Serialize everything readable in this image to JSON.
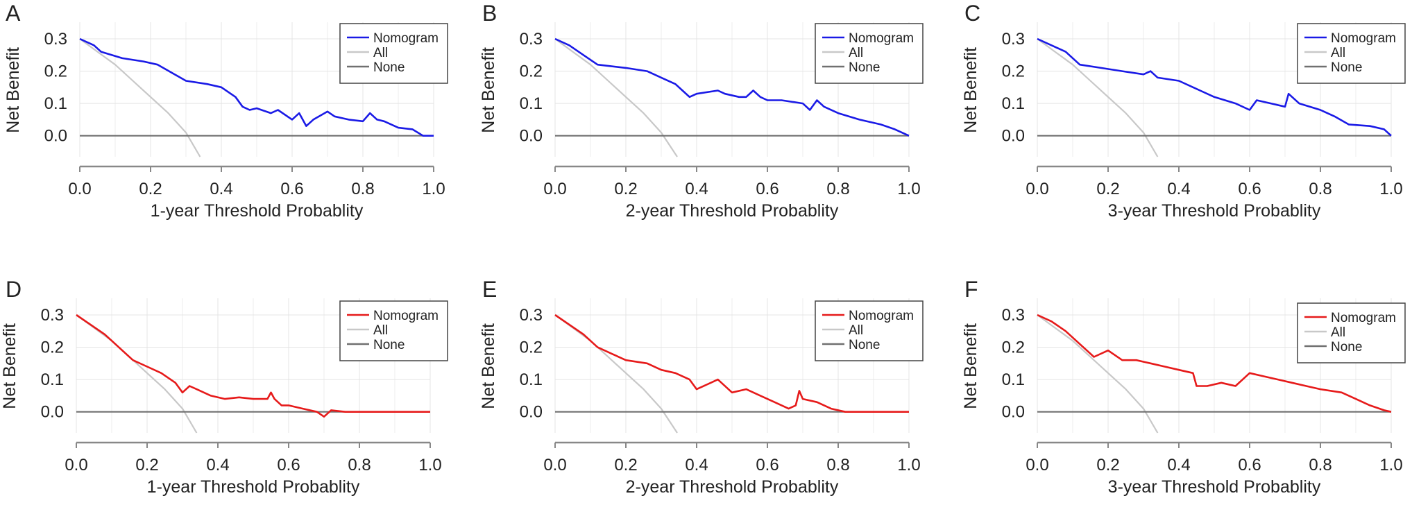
{
  "chart_data": [
    {
      "type": "line",
      "panel_label": "A",
      "xlabel": "1-year Threshold Probablity",
      "ylabel": "Net Benefit",
      "xlim": [
        0,
        1
      ],
      "ylim": [
        -0.065,
        0.33
      ],
      "x_ticks": [
        "0.0",
        "0.2",
        "0.4",
        "0.6",
        "0.8",
        "1.0"
      ],
      "y_ticks": [
        "0.0",
        "0.1",
        "0.2",
        "0.3"
      ],
      "legend": [
        "Nomogram",
        "All",
        "None"
      ],
      "legend_position": "top-right",
      "grid": true,
      "series": [
        {
          "name": "Nomogram",
          "color": "#1a1ae6",
          "x": [
            0,
            0.04,
            0.06,
            0.12,
            0.18,
            0.22,
            0.3,
            0.36,
            0.4,
            0.44,
            0.46,
            0.48,
            0.5,
            0.54,
            0.56,
            0.6,
            0.62,
            0.64,
            0.66,
            0.7,
            0.72,
            0.74,
            0.76,
            0.8,
            0.82,
            0.84,
            0.86,
            0.9,
            0.94,
            0.97,
            1.0
          ],
          "y": [
            0.3,
            0.28,
            0.26,
            0.24,
            0.23,
            0.22,
            0.17,
            0.16,
            0.15,
            0.12,
            0.09,
            0.08,
            0.085,
            0.07,
            0.08,
            0.05,
            0.07,
            0.03,
            0.05,
            0.075,
            0.06,
            0.055,
            0.05,
            0.045,
            0.07,
            0.05,
            0.045,
            0.025,
            0.02,
            0.0,
            0.0
          ]
        },
        {
          "name": "All",
          "color": "#c8c8c8",
          "x": [
            0,
            0.05,
            0.1,
            0.15,
            0.2,
            0.25,
            0.3,
            0.34
          ],
          "y": [
            0.3,
            0.26,
            0.22,
            0.17,
            0.12,
            0.07,
            0.01,
            -0.065
          ]
        },
        {
          "name": "None",
          "color": "#707070",
          "x": [
            0,
            1
          ],
          "y": [
            0,
            0
          ]
        }
      ]
    },
    {
      "type": "line",
      "panel_label": "B",
      "xlabel": "2-year Threshold Probablity",
      "ylabel": "Net Benefit",
      "xlim": [
        0,
        1
      ],
      "ylim": [
        -0.065,
        0.33
      ],
      "x_ticks": [
        "0.0",
        "0.2",
        "0.4",
        "0.6",
        "0.8",
        "1.0"
      ],
      "y_ticks": [
        "0.0",
        "0.1",
        "0.2",
        "0.3"
      ],
      "legend": [
        "Nomogram",
        "All",
        "None"
      ],
      "legend_position": "top-right",
      "grid": true,
      "series": [
        {
          "name": "Nomogram",
          "color": "#1a1ae6",
          "x": [
            0,
            0.04,
            0.08,
            0.12,
            0.2,
            0.26,
            0.3,
            0.34,
            0.36,
            0.38,
            0.4,
            0.46,
            0.48,
            0.52,
            0.54,
            0.56,
            0.58,
            0.6,
            0.64,
            0.7,
            0.72,
            0.74,
            0.76,
            0.8,
            0.86,
            0.92,
            0.96,
            1.0
          ],
          "y": [
            0.3,
            0.28,
            0.25,
            0.22,
            0.21,
            0.2,
            0.18,
            0.16,
            0.14,
            0.12,
            0.13,
            0.14,
            0.13,
            0.12,
            0.12,
            0.14,
            0.12,
            0.11,
            0.11,
            0.1,
            0.08,
            0.11,
            0.09,
            0.07,
            0.05,
            0.035,
            0.02,
            0.0
          ]
        },
        {
          "name": "All",
          "color": "#c8c8c8",
          "x": [
            0,
            0.05,
            0.1,
            0.15,
            0.2,
            0.25,
            0.3,
            0.345
          ],
          "y": [
            0.3,
            0.26,
            0.22,
            0.17,
            0.12,
            0.07,
            0.01,
            -0.065
          ]
        },
        {
          "name": "None",
          "color": "#707070",
          "x": [
            0,
            1
          ],
          "y": [
            0,
            0
          ]
        }
      ]
    },
    {
      "type": "line",
      "panel_label": "C",
      "xlabel": "3-year Threshold Probablity",
      "ylabel": "Net Benefit",
      "xlim": [
        0,
        1
      ],
      "ylim": [
        -0.065,
        0.33
      ],
      "x_ticks": [
        "0.0",
        "0.2",
        "0.4",
        "0.6",
        "0.8",
        "1.0"
      ],
      "y_ticks": [
        "0.0",
        "0.1",
        "0.2",
        "0.3"
      ],
      "legend": [
        "Nomogram",
        "All",
        "None"
      ],
      "legend_position": "top-right",
      "grid": true,
      "series": [
        {
          "name": "Nomogram",
          "color": "#1a1ae6",
          "x": [
            0,
            0.04,
            0.08,
            0.12,
            0.18,
            0.24,
            0.3,
            0.32,
            0.34,
            0.4,
            0.46,
            0.5,
            0.56,
            0.6,
            0.62,
            0.66,
            0.7,
            0.71,
            0.74,
            0.8,
            0.84,
            0.88,
            0.94,
            0.98,
            1.0
          ],
          "y": [
            0.3,
            0.28,
            0.26,
            0.22,
            0.21,
            0.2,
            0.19,
            0.2,
            0.18,
            0.17,
            0.14,
            0.12,
            0.1,
            0.08,
            0.11,
            0.1,
            0.09,
            0.13,
            0.1,
            0.08,
            0.06,
            0.035,
            0.03,
            0.02,
            0.0
          ]
        },
        {
          "name": "All",
          "color": "#c8c8c8",
          "x": [
            0,
            0.05,
            0.1,
            0.15,
            0.2,
            0.25,
            0.3,
            0.34
          ],
          "y": [
            0.3,
            0.26,
            0.22,
            0.17,
            0.12,
            0.07,
            0.01,
            -0.065
          ]
        },
        {
          "name": "None",
          "color": "#707070",
          "x": [
            0,
            1
          ],
          "y": [
            0,
            0
          ]
        }
      ]
    },
    {
      "type": "line",
      "panel_label": "D",
      "xlabel": "1-year Threshold Probablity",
      "ylabel": "Net Benefit",
      "xlim": [
        0,
        1
      ],
      "ylim": [
        -0.065,
        0.33
      ],
      "x_ticks": [
        "0.0",
        "0.2",
        "0.4",
        "0.6",
        "0.8",
        "1.0"
      ],
      "y_ticks": [
        "0.0",
        "0.1",
        "0.2",
        "0.3"
      ],
      "legend": [
        "Nomogram",
        "All",
        "None"
      ],
      "legend_position": "top-right",
      "grid": true,
      "series": [
        {
          "name": "Nomogram",
          "color": "#e61a1a",
          "x": [
            0,
            0.04,
            0.08,
            0.1,
            0.12,
            0.16,
            0.2,
            0.24,
            0.28,
            0.3,
            0.32,
            0.34,
            0.38,
            0.42,
            0.46,
            0.5,
            0.54,
            0.55,
            0.56,
            0.58,
            0.6,
            0.64,
            0.68,
            0.7,
            0.72,
            0.76,
            0.8,
            1.0
          ],
          "y": [
            0.3,
            0.27,
            0.24,
            0.22,
            0.2,
            0.16,
            0.14,
            0.12,
            0.09,
            0.06,
            0.08,
            0.07,
            0.05,
            0.04,
            0.045,
            0.04,
            0.04,
            0.06,
            0.04,
            0.02,
            0.02,
            0.01,
            0.0,
            -0.015,
            0.005,
            0.0,
            0.0,
            0.0
          ]
        },
        {
          "name": "All",
          "color": "#c8c8c8",
          "x": [
            0,
            0.05,
            0.1,
            0.15,
            0.2,
            0.25,
            0.3,
            0.34
          ],
          "y": [
            0.3,
            0.26,
            0.22,
            0.17,
            0.12,
            0.07,
            0.01,
            -0.065
          ]
        },
        {
          "name": "None",
          "color": "#707070",
          "x": [
            0,
            1
          ],
          "y": [
            0,
            0
          ]
        }
      ]
    },
    {
      "type": "line",
      "panel_label": "E",
      "xlabel": "2-year Threshold Probablity",
      "ylabel": "Net Benefit",
      "xlim": [
        0,
        1
      ],
      "ylim": [
        -0.065,
        0.33
      ],
      "x_ticks": [
        "0.0",
        "0.2",
        "0.4",
        "0.6",
        "0.8",
        "1.0"
      ],
      "y_ticks": [
        "0.0",
        "0.1",
        "0.2",
        "0.3"
      ],
      "legend": [
        "Nomogram",
        "All",
        "None"
      ],
      "legend_position": "top-right",
      "grid": true,
      "series": [
        {
          "name": "Nomogram",
          "color": "#e61a1a",
          "x": [
            0,
            0.04,
            0.08,
            0.12,
            0.16,
            0.2,
            0.26,
            0.3,
            0.34,
            0.38,
            0.4,
            0.44,
            0.46,
            0.5,
            0.54,
            0.58,
            0.62,
            0.66,
            0.68,
            0.69,
            0.7,
            0.74,
            0.78,
            0.82,
            0.84,
            1.0
          ],
          "y": [
            0.3,
            0.27,
            0.24,
            0.2,
            0.18,
            0.16,
            0.15,
            0.13,
            0.12,
            0.1,
            0.07,
            0.09,
            0.1,
            0.06,
            0.07,
            0.05,
            0.03,
            0.01,
            0.02,
            0.065,
            0.04,
            0.03,
            0.01,
            0.0,
            0.0,
            0.0
          ]
        },
        {
          "name": "All",
          "color": "#c8c8c8",
          "x": [
            0,
            0.05,
            0.1,
            0.15,
            0.2,
            0.25,
            0.3,
            0.345
          ],
          "y": [
            0.3,
            0.26,
            0.22,
            0.17,
            0.12,
            0.07,
            0.01,
            -0.065
          ]
        },
        {
          "name": "None",
          "color": "#707070",
          "x": [
            0,
            1
          ],
          "y": [
            0,
            0
          ]
        }
      ]
    },
    {
      "type": "line",
      "panel_label": "F",
      "xlabel": "3-year Threshold Probablity",
      "ylabel": "Net Benefit",
      "xlim": [
        0,
        1
      ],
      "ylim": [
        -0.065,
        0.33
      ],
      "x_ticks": [
        "0.0",
        "0.2",
        "0.4",
        "0.6",
        "0.8",
        "1.0"
      ],
      "y_ticks": [
        "0.0",
        "0.1",
        "0.2",
        "0.3"
      ],
      "legend": [
        "Nomogram",
        "All",
        "None"
      ],
      "legend_position": "top-right",
      "grid": true,
      "series": [
        {
          "name": "Nomogram",
          "color": "#e61a1a",
          "x": [
            0,
            0.04,
            0.08,
            0.12,
            0.16,
            0.2,
            0.24,
            0.28,
            0.32,
            0.36,
            0.4,
            0.44,
            0.45,
            0.48,
            0.52,
            0.56,
            0.6,
            0.64,
            0.68,
            0.72,
            0.76,
            0.8,
            0.86,
            0.9,
            0.94,
            0.98,
            1.0
          ],
          "y": [
            0.3,
            0.28,
            0.25,
            0.21,
            0.17,
            0.19,
            0.16,
            0.16,
            0.15,
            0.14,
            0.13,
            0.12,
            0.08,
            0.08,
            0.09,
            0.08,
            0.12,
            0.11,
            0.1,
            0.09,
            0.08,
            0.07,
            0.06,
            0.04,
            0.02,
            0.005,
            0.0
          ]
        },
        {
          "name": "All",
          "color": "#c8c8c8",
          "x": [
            0,
            0.05,
            0.1,
            0.15,
            0.2,
            0.25,
            0.3,
            0.34
          ],
          "y": [
            0.3,
            0.26,
            0.22,
            0.17,
            0.12,
            0.07,
            0.01,
            -0.065
          ]
        },
        {
          "name": "None",
          "color": "#707070",
          "x": [
            0,
            1
          ],
          "y": [
            0,
            0
          ]
        }
      ]
    }
  ]
}
